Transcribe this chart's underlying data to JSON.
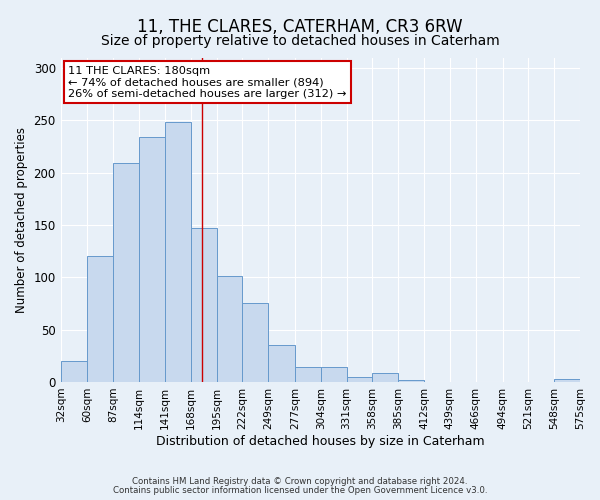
{
  "title": "11, THE CLARES, CATERHAM, CR3 6RW",
  "subtitle": "Size of property relative to detached houses in Caterham",
  "xlabel": "Distribution of detached houses by size in Caterham",
  "ylabel": "Number of detached properties",
  "bin_edges": [
    32,
    60,
    87,
    114,
    141,
    168,
    195,
    222,
    249,
    277,
    304,
    331,
    358,
    385,
    412,
    439,
    466,
    494,
    521,
    548,
    575
  ],
  "bar_heights": [
    20,
    120,
    209,
    234,
    248,
    147,
    101,
    75,
    35,
    14,
    14,
    5,
    9,
    2,
    0,
    0,
    0,
    0,
    0,
    3
  ],
  "bar_color": "#c8d9ee",
  "bar_edge_color": "#6699cc",
  "property_size": 180,
  "vline_color": "#cc0000",
  "annotation_line1": "11 THE CLARES: 180sqm",
  "annotation_line2": "← 74% of detached houses are smaller (894)",
  "annotation_line3": "26% of semi-detached houses are larger (312) →",
  "annotation_box_color": "#ffffff",
  "annotation_box_edge": "#cc0000",
  "bg_color": "#e8f0f8",
  "footer_line1": "Contains HM Land Registry data © Crown copyright and database right 2024.",
  "footer_line2": "Contains public sector information licensed under the Open Government Licence v3.0.",
  "ylim": [
    0,
    310
  ],
  "yticks": [
    0,
    50,
    100,
    150,
    200,
    250,
    300
  ],
  "title_fontsize": 12,
  "subtitle_fontsize": 10,
  "ylabel_fontsize": 8.5,
  "xlabel_fontsize": 9
}
